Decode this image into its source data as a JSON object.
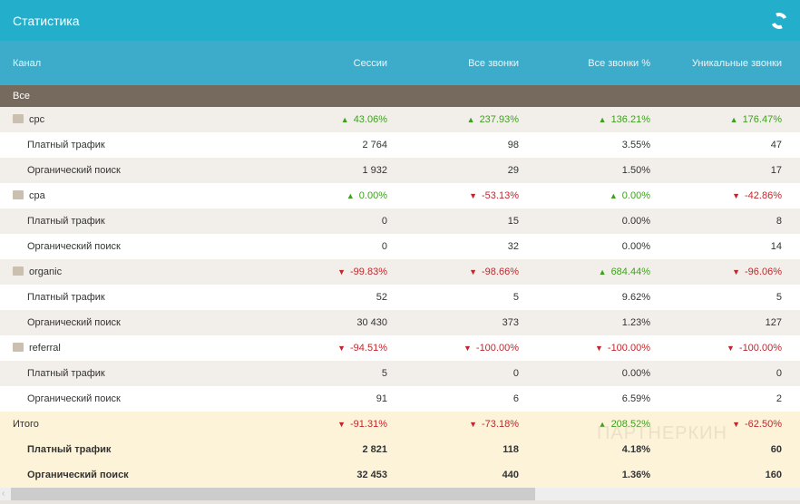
{
  "header": {
    "title": "Статистика",
    "refresh_icon": "refresh-icon"
  },
  "columns": [
    "Канал",
    "Сессии",
    "Все звонки",
    "Все звонки %",
    "Уникальные звонки"
  ],
  "all_label": "Все",
  "rows": [
    {
      "type": "group",
      "name": "cpc",
      "values": [
        {
          "v": "43.06%",
          "dir": "up"
        },
        {
          "v": "237.93%",
          "dir": "up"
        },
        {
          "v": "136.21%",
          "dir": "up"
        },
        {
          "v": "176.47%",
          "dir": "up"
        }
      ]
    },
    {
      "type": "sub",
      "name": "Платный трафик",
      "values": [
        "2 764",
        "98",
        "3.55%",
        "47"
      ]
    },
    {
      "type": "sub",
      "name": "Органический поиск",
      "values": [
        "1 932",
        "29",
        "1.50%",
        "17"
      ]
    },
    {
      "type": "group",
      "name": "cpa",
      "values": [
        {
          "v": "0.00%",
          "dir": "up"
        },
        {
          "v": "-53.13%",
          "dir": "down"
        },
        {
          "v": "0.00%",
          "dir": "up"
        },
        {
          "v": "-42.86%",
          "dir": "down"
        }
      ]
    },
    {
      "type": "sub",
      "name": "Платный трафик",
      "values": [
        "0",
        "15",
        "0.00%",
        "8"
      ]
    },
    {
      "type": "sub",
      "name": "Органический поиск",
      "values": [
        "0",
        "32",
        "0.00%",
        "14"
      ]
    },
    {
      "type": "group",
      "name": "organic",
      "values": [
        {
          "v": "-99.83%",
          "dir": "down"
        },
        {
          "v": "-98.66%",
          "dir": "down"
        },
        {
          "v": "684.44%",
          "dir": "up"
        },
        {
          "v": "-96.06%",
          "dir": "down"
        }
      ]
    },
    {
      "type": "sub",
      "name": "Платный трафик",
      "values": [
        "52",
        "5",
        "9.62%",
        "5"
      ]
    },
    {
      "type": "sub",
      "name": "Органический поиск",
      "values": [
        "30 430",
        "373",
        "1.23%",
        "127"
      ]
    },
    {
      "type": "group",
      "name": "referral",
      "values": [
        {
          "v": "-94.51%",
          "dir": "down"
        },
        {
          "v": "-100.00%",
          "dir": "down"
        },
        {
          "v": "-100.00%",
          "dir": "down"
        },
        {
          "v": "-100.00%",
          "dir": "down"
        }
      ]
    },
    {
      "type": "sub",
      "name": "Платный трафик",
      "values": [
        "5",
        "0",
        "0.00%",
        "0"
      ]
    },
    {
      "type": "sub",
      "name": "Органический поиск",
      "values": [
        "91",
        "6",
        "6.59%",
        "2"
      ]
    }
  ],
  "totals": [
    {
      "name": "Итого",
      "values": [
        {
          "v": "-91.31%",
          "dir": "down"
        },
        {
          "v": "-73.18%",
          "dir": "down"
        },
        {
          "v": "208.52%",
          "dir": "up"
        },
        {
          "v": "-62.50%",
          "dir": "down"
        }
      ]
    },
    {
      "name": "Платный трафик",
      "values": [
        "2 821",
        "118",
        "4.18%",
        "60"
      ]
    },
    {
      "name": "Органический поиск",
      "values": [
        "32 453",
        "440",
        "1.36%",
        "160"
      ]
    }
  ],
  "watermark": "ПАРТНЕРКИН",
  "colors": {
    "header": "#23afcc",
    "up": "#3f9f1f",
    "down": "#c0272d"
  }
}
